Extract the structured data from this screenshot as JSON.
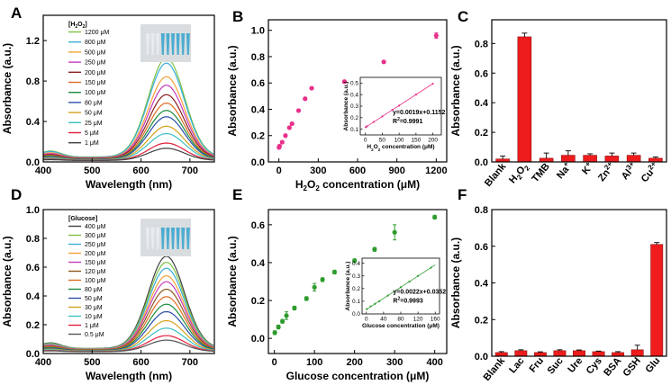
{
  "chart_data": [
    {
      "id": "A",
      "type": "line",
      "letter": "A",
      "xlabel": "Wavelength (nm)",
      "ylabel": "Absorbance (a.u.)",
      "xlim": [
        400,
        750
      ],
      "ylim": [
        0,
        1.45
      ],
      "xticks": [
        400,
        500,
        600,
        700
      ],
      "yticks": [
        0.0,
        0.4,
        0.8,
        1.2
      ],
      "legend_title": "[H2O2]",
      "peak_nm": 652,
      "series": [
        {
          "name": "1200 μM",
          "peak": 0.98,
          "color": "#7fc241"
        },
        {
          "name": "800 μM",
          "peak": 0.93,
          "color": "#3aaed8"
        },
        {
          "name": "500 μM",
          "peak": 0.8,
          "color": "#f2a33a"
        },
        {
          "name": "250 μM",
          "peak": 0.72,
          "color": "#c43cbf"
        },
        {
          "name": "200 μM",
          "peak": 0.63,
          "color": "#8b1f1f"
        },
        {
          "name": "150 μM",
          "peak": 0.55,
          "color": "#e06c20"
        },
        {
          "name": "100 μM",
          "peak": 0.48,
          "color": "#1c8c3c"
        },
        {
          "name": "80 μM",
          "peak": 0.42,
          "color": "#2c4fa8"
        },
        {
          "name": "50 μM",
          "peak": 0.33,
          "color": "#d4a21c"
        },
        {
          "name": "25 μM",
          "peak": 0.26,
          "color": "#3cc0c0"
        },
        {
          "name": "5 μM",
          "peak": 0.17,
          "color": "#e0203a"
        },
        {
          "name": "1 μM",
          "peak": 0.12,
          "color": "#404040"
        }
      ]
    },
    {
      "id": "B",
      "type": "scatter",
      "letter": "B",
      "xlabel": "H2O2 concentration (μM)",
      "ylabel": "Absorbance (a.u.)",
      "xlim": [
        -80,
        1280
      ],
      "ylim": [
        0,
        1.08
      ],
      "xticks": [
        0,
        300,
        600,
        900,
        1200
      ],
      "yticks": [
        0.0,
        0.2,
        0.4,
        0.6,
        0.8,
        1.0
      ],
      "color": "#e8308a",
      "x": [
        1,
        5,
        25,
        50,
        80,
        100,
        150,
        200,
        250,
        500,
        800,
        1200
      ],
      "y": [
        0.11,
        0.12,
        0.15,
        0.2,
        0.26,
        0.29,
        0.39,
        0.48,
        0.56,
        0.61,
        0.76,
        0.96
      ],
      "err": [
        0.01,
        0.01,
        0.01,
        0.01,
        0.01,
        0.01,
        0.01,
        0.01,
        0.01,
        0.01,
        0.01,
        0.02
      ],
      "inset": {
        "xlabel": "H2O2 concentration (μM)",
        "ylabel": "Absorbance (a.u.)",
        "xlim": [
          -15,
          225
        ],
        "ylim": [
          0.05,
          0.55
        ],
        "xticks": [
          0,
          50,
          100,
          150,
          200
        ],
        "yticks": [
          0.1,
          0.2,
          0.3,
          0.4,
          0.5
        ],
        "x": [
          1,
          5,
          25,
          50,
          80,
          100,
          150,
          200
        ],
        "y": [
          0.117,
          0.125,
          0.163,
          0.21,
          0.268,
          0.305,
          0.4,
          0.495
        ],
        "fit": {
          "slope": 0.0019,
          "intercept": 0.1152
        },
        "equation": "y=0.0019x+0.1152",
        "r2": "R²=0.9991"
      }
    },
    {
      "id": "C",
      "type": "bar",
      "letter": "C",
      "ylabel": "Absorbance (a.u.)",
      "ylim": [
        0,
        0.96
      ],
      "yticks": [
        0.0,
        0.2,
        0.4,
        0.6,
        0.8
      ],
      "color": "#ee1c1c",
      "categories": [
        "Blank",
        "H2O2",
        "TMB",
        "Na+",
        "K+",
        "Zn2+",
        "Al3+",
        "Cu2+"
      ],
      "values": [
        0.02,
        0.845,
        0.025,
        0.045,
        0.045,
        0.04,
        0.045,
        0.025
      ],
      "err": [
        0.02,
        0.025,
        0.035,
        0.03,
        0.01,
        0.02,
        0.015,
        0.008
      ]
    },
    {
      "id": "D",
      "type": "line",
      "letter": "D",
      "xlabel": "Wavelength (nm)",
      "ylabel": "Absorbance (a.u.)",
      "xlim": [
        400,
        750
      ],
      "ylim": [
        0,
        1.0
      ],
      "xticks": [
        400,
        500,
        600,
        700
      ],
      "yticks": [
        0.0,
        0.2,
        0.4,
        0.6,
        0.8,
        1.0
      ],
      "legend_title": "[Glucose]",
      "peak_nm": 652,
      "series": [
        {
          "name": "400 μM",
          "peak": 0.64,
          "color": "#404040"
        },
        {
          "name": "300 μM",
          "peak": 0.6,
          "color": "#7fc241"
        },
        {
          "name": "250 μM",
          "peak": 0.56,
          "color": "#3aaed8"
        },
        {
          "name": "200 μM",
          "peak": 0.51,
          "color": "#f2a33a"
        },
        {
          "name": "150 μM",
          "peak": 0.47,
          "color": "#c43cbf"
        },
        {
          "name": "120 μM",
          "peak": 0.42,
          "color": "#8b5a1f"
        },
        {
          "name": "100 μM",
          "peak": 0.37,
          "color": "#e06c20"
        },
        {
          "name": "80 μM",
          "peak": 0.32,
          "color": "#1c8c3c"
        },
        {
          "name": "50 μM",
          "peak": 0.27,
          "color": "#2c4fa8"
        },
        {
          "name": "30 μM",
          "peak": 0.21,
          "color": "#d4a21c"
        },
        {
          "name": "10 μM",
          "peak": 0.16,
          "color": "#3cc0c0"
        },
        {
          "name": "1 μM",
          "peak": 0.11,
          "color": "#e0203a"
        },
        {
          "name": "0.5 μM",
          "peak": 0.08,
          "color": "#555555"
        }
      ]
    },
    {
      "id": "E",
      "type": "scatter",
      "letter": "E",
      "xlabel": "Glucose concentration (μM)",
      "ylabel": "Absorbance (a.u.)",
      "xlim": [
        -15,
        430
      ],
      "ylim": [
        -0.08,
        0.68
      ],
      "xticks": [
        0,
        100,
        200,
        300,
        400
      ],
      "yticks": [
        0.0,
        0.2,
        0.4,
        0.6
      ],
      "color": "#2e9c2e",
      "x": [
        1,
        10,
        20,
        30,
        50,
        80,
        100,
        120,
        150,
        200,
        250,
        300,
        400
      ],
      "y": [
        0.03,
        0.06,
        0.09,
        0.12,
        0.16,
        0.21,
        0.27,
        0.31,
        0.35,
        0.41,
        0.47,
        0.56,
        0.64
      ],
      "err": [
        0.01,
        0.01,
        0.01,
        0.02,
        0.01,
        0.01,
        0.02,
        0.01,
        0.01,
        0.01,
        0.01,
        0.04,
        0.01
      ],
      "inset": {
        "xlabel": "Glucose concentration (μM)",
        "ylabel": "Absorbance (a.u.)",
        "xlim": [
          -10,
          170
        ],
        "ylim": [
          0,
          0.44
        ],
        "xticks": [
          0,
          40,
          80,
          120,
          160
        ],
        "yticks": [
          0.0,
          0.1,
          0.2,
          0.3,
          0.4
        ],
        "x": [
          1,
          10,
          20,
          30,
          50,
          80,
          100,
          120,
          150
        ],
        "y": [
          0.038,
          0.06,
          0.08,
          0.1,
          0.145,
          0.21,
          0.255,
          0.3,
          0.365
        ],
        "fit": {
          "slope": 0.0022,
          "intercept": 0.0352
        },
        "equation": "y=0.0022x+0.0352",
        "r2": "R²=0.9993"
      }
    },
    {
      "id": "F",
      "type": "bar",
      "letter": "F",
      "ylabel": "Absorbance (a.u.)",
      "ylim": [
        0,
        0.8
      ],
      "yticks": [
        0.0,
        0.2,
        0.4,
        0.6,
        0.8
      ],
      "color": "#ee1c1c",
      "categories": [
        "Blank",
        "Lac",
        "Fru",
        "Suc",
        "Ure",
        "Cys",
        "BSA",
        "GSH",
        "Glu"
      ],
      "values": [
        0.02,
        0.03,
        0.02,
        0.03,
        0.03,
        0.025,
        0.02,
        0.035,
        0.61
      ],
      "err": [
        0.005,
        0.005,
        0.004,
        0.005,
        0.004,
        0.003,
        0.005,
        0.025,
        0.01
      ]
    }
  ],
  "colors": {
    "axis": "#000000",
    "vial_blue": "#3ca6cf"
  }
}
